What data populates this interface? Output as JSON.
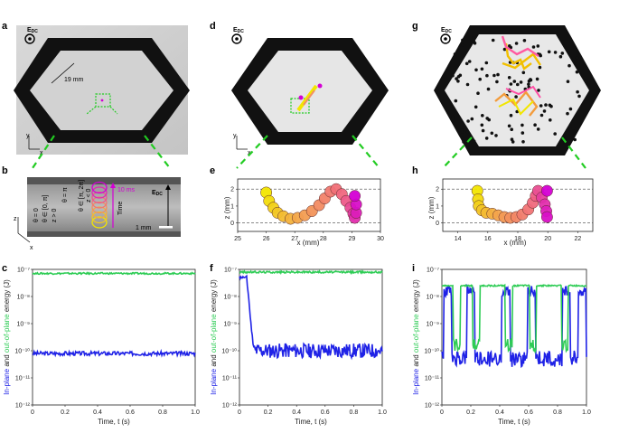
{
  "panels": {
    "a": {
      "label": "a",
      "field_label": "E",
      "field_sub": "DC",
      "scale_text": "19 mm",
      "axis_x": "x",
      "axis_y": "y"
    },
    "b": {
      "label": "b",
      "field_label": "E",
      "field_sub": "DC",
      "theta_top": "θ = π",
      "theta_mid": "θ ∈ [0, π]",
      "theta_bot": "θ = 0",
      "z_pos": "z > 0",
      "z_neg": "z < 0",
      "theta_range2": "θ ∈ [π, 2π]",
      "time_ms": "10 ms",
      "time_word": "Time",
      "scale_text": "1 mm",
      "axis_z": "z",
      "axis_x": "x"
    },
    "c": {
      "label": "c"
    },
    "d": {
      "label": "d",
      "field_label": "E",
      "field_sub": "DC",
      "axis_x": "x",
      "axis_y": "y"
    },
    "e": {
      "label": "e",
      "xlabel": "x (mm)",
      "ylabel": "z (mm)",
      "xticks": [
        "25",
        "26",
        "27",
        "28",
        "29",
        "30"
      ],
      "yticks": [
        "2",
        "1",
        "0"
      ]
    },
    "f": {
      "label": "f"
    },
    "g": {
      "label": "g",
      "field_label": "E",
      "field_sub": "DC"
    },
    "h": {
      "label": "h",
      "xlabel": "x (mm)",
      "ylabel": "z (mm)",
      "xticks": [
        "14",
        "16",
        "18",
        "20",
        "22"
      ],
      "yticks": [
        "2",
        "1",
        "0"
      ]
    },
    "i": {
      "label": "i"
    }
  },
  "energy_axes": {
    "xlabel": "Time, t (s)",
    "ylabel_in": "In-plane",
    "ylabel_and": " and ",
    "ylabel_out": "out-of-plane",
    "ylabel_energy": " energy (J)",
    "xticks": [
      "0",
      "0.2",
      "0.4",
      "0.6",
      "0.8",
      "1.0"
    ],
    "yticks": [
      "10⁻⁷",
      "10⁻⁸",
      "10⁻⁹",
      "10⁻¹⁰",
      "10⁻¹¹",
      "10⁻¹²"
    ]
  },
  "colors": {
    "in_plane": "#1f22e6",
    "out_of_plane": "#2ecc55",
    "green_dash": "#22cc22",
    "magenta": "#d400d4",
    "yellow": "#f2e600"
  },
  "chart_data": [
    {
      "type": "line",
      "panel": "c",
      "xlabel": "Time, t (s)",
      "ylabel": "In-plane and out-of-plane energy (J)",
      "ylog": true,
      "ylim": [
        1e-12,
        1e-07
      ],
      "xlim": [
        0,
        1
      ],
      "series": [
        {
          "name": "In-plane",
          "mode": "steady",
          "log_level": -10.1,
          "noise": 0.15
        },
        {
          "name": "out-of-plane",
          "mode": "steady",
          "log_level": -7.15,
          "noise": 0.06
        }
      ]
    },
    {
      "type": "line",
      "panel": "f",
      "xlabel": "Time, t (s)",
      "ylabel": "In-plane and out-of-plane energy (J)",
      "ylog": true,
      "ylim": [
        1e-12,
        1e-07
      ],
      "xlim": [
        0,
        1
      ],
      "series": [
        {
          "name": "In-plane",
          "mode": "drop",
          "log_level": -10.0,
          "noise": 0.55
        },
        {
          "name": "out-of-plane",
          "mode": "steady",
          "log_level": -7.1,
          "noise": 0.07
        }
      ]
    },
    {
      "type": "line",
      "panel": "i",
      "xlabel": "Time, t (s)",
      "ylabel": "In-plane and out-of-plane energy (J)",
      "ylog": true,
      "ylim": [
        1e-12,
        1e-07
      ],
      "xlim": [
        0,
        1
      ],
      "series": [
        {
          "name": "In-plane",
          "mode": "switch",
          "log_level": -10.3,
          "noise": 0.3
        },
        {
          "name": "out-of-plane",
          "mode": "switch_out",
          "log_level": -7.6,
          "noise": 0.05
        }
      ]
    },
    {
      "type": "scatter",
      "panel": "e",
      "xlabel": "x (mm)",
      "ylabel": "z (mm)",
      "xlim": [
        25,
        30
      ],
      "ylim": [
        -0.5,
        2.6
      ],
      "x": [
        26.0,
        26.1,
        26.25,
        26.4,
        26.6,
        26.85,
        27.1,
        27.35,
        27.6,
        27.85,
        28.05,
        28.25,
        28.45,
        28.65,
        28.8,
        28.95,
        29.05,
        29.1,
        29.15,
        29.15,
        29.1
      ],
      "y": [
        1.8,
        1.3,
        0.9,
        0.6,
        0.4,
        0.25,
        0.3,
        0.45,
        0.7,
        1.05,
        1.45,
        1.85,
        2.0,
        1.7,
        1.3,
        0.9,
        0.55,
        0.3,
        0.6,
        1.1,
        1.6
      ]
    },
    {
      "type": "scatter",
      "panel": "h",
      "xlabel": "x (mm)",
      "ylabel": "z (mm)",
      "xlim": [
        13,
        23
      ],
      "ylim": [
        -0.5,
        2.6
      ],
      "x": [
        15.3,
        15.35,
        15.4,
        15.6,
        15.9,
        16.3,
        16.7,
        17.1,
        17.5,
        17.9,
        18.3,
        18.7,
        19.0,
        19.2,
        19.35,
        19.6,
        19.8,
        19.9,
        19.95,
        19.95
      ],
      "y": [
        1.9,
        1.4,
        1.0,
        0.75,
        0.6,
        0.55,
        0.45,
        0.35,
        0.3,
        0.35,
        0.5,
        0.8,
        1.2,
        1.6,
        1.9,
        1.5,
        1.1,
        0.7,
        0.35,
        1.9
      ]
    }
  ]
}
